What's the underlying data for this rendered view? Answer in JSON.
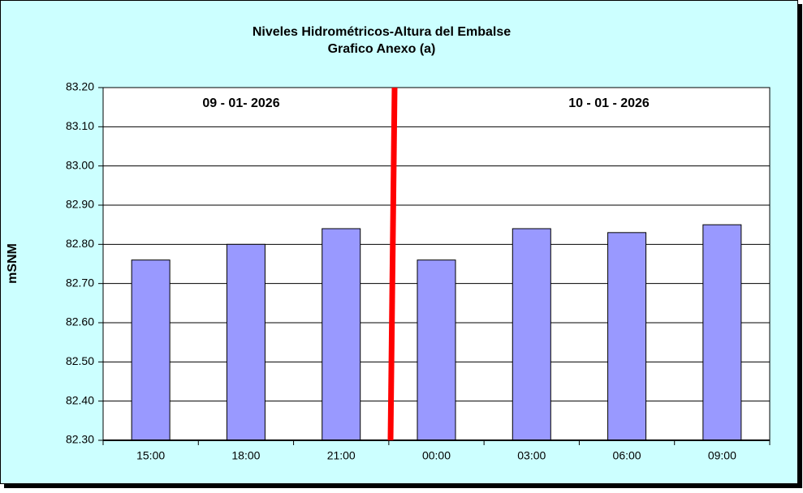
{
  "chart_data": {
    "type": "bar",
    "title": "Niveles Hidrométricos-Altura del Embalse",
    "subtitle": "Grafico Anexo (a)",
    "y_label": "mSNM",
    "annotations": [
      "09 - 01- 2026",
      "10 - 01 - 2026"
    ],
    "categories": [
      "15:00",
      "18:00",
      "21:00",
      "00:00",
      "03:00",
      "06:00",
      "09:00"
    ],
    "values": [
      82.76,
      82.8,
      82.84,
      82.76,
      82.84,
      82.83,
      82.85
    ],
    "color": "#9999ff",
    "ylim": [
      82.3,
      83.2
    ],
    "yticks": [
      {
        "value": 82.3,
        "label": "82.30"
      },
      {
        "value": 82.4,
        "label": "82.40"
      },
      {
        "value": 82.5,
        "label": "82.50"
      },
      {
        "value": 82.6,
        "label": "82.60"
      },
      {
        "value": 82.7,
        "label": "82.70"
      },
      {
        "value": 82.8,
        "label": "82.80"
      },
      {
        "value": 82.9,
        "label": "82.90"
      },
      {
        "value": 83.0,
        "label": "83.00"
      },
      {
        "value": 83.1,
        "label": "83.10"
      },
      {
        "value": 83.2,
        "label": "83.20"
      }
    ],
    "grid": true
  }
}
